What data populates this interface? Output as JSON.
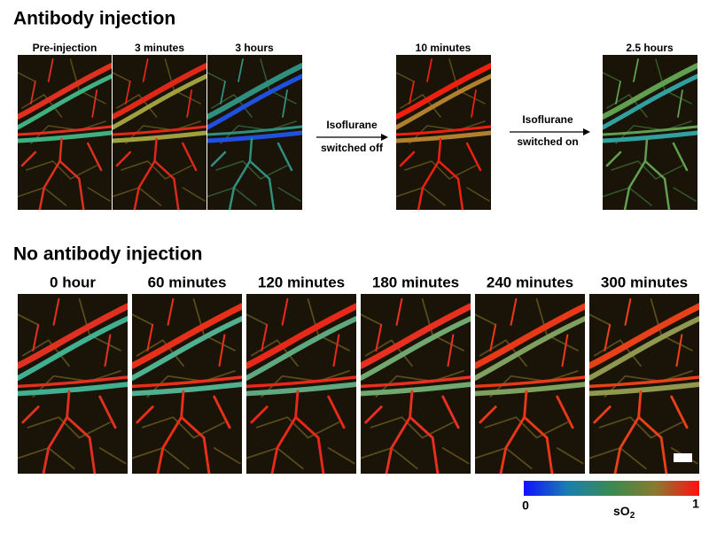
{
  "sections": [
    {
      "title": "Antibody injection",
      "panels": [
        "Pre-injection",
        "3 minutes",
        "3 hours",
        "10 minutes",
        "2.5 hours"
      ],
      "arrows": [
        {
          "top": "Isoflurane",
          "bottom": "switched off"
        },
        {
          "top": "Isoflurane",
          "bottom": "switched on"
        }
      ]
    },
    {
      "title": "No antibody injection",
      "panels": [
        "0 hour",
        "60 minutes",
        "120 minutes",
        "180 minutes",
        "240 minutes",
        "300 minutes"
      ]
    }
  ],
  "colorbar": {
    "min_label": "0",
    "max_label": "1",
    "label_base": "sO",
    "label_subscript": "2"
  }
}
